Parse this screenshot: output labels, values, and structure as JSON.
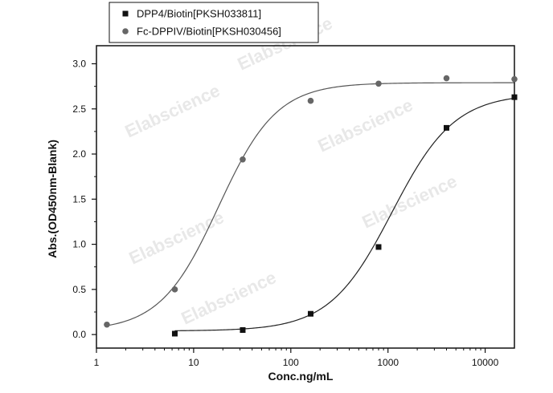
{
  "chart_data": {
    "type": "scatter",
    "xscale": "log",
    "xlim": [
      1,
      20000
    ],
    "ylim": [
      -0.15,
      3.2
    ],
    "xticks": [
      1,
      10,
      100,
      1000,
      10000
    ],
    "xtick_labels": [
      "1",
      "10",
      "100",
      "1000",
      "10000"
    ],
    "yticks": [
      0.0,
      0.5,
      1.0,
      1.5,
      2.0,
      2.5,
      3.0
    ],
    "ytick_labels": [
      "0.0",
      "0.5",
      "1.0",
      "1.5",
      "2.0",
      "2.5",
      "3.0"
    ],
    "xlabel": "Conc.ng/mL",
    "ylabel": "Abs.(OD450nm-Blank)",
    "legend_position": "top-left",
    "grid": false,
    "series": [
      {
        "name": "DPP4/Biotin[PKSH033811]",
        "marker": "square",
        "color": "#111111",
        "x": [
          6.4,
          32,
          160,
          800,
          4000,
          20000
        ],
        "y": [
          0.01,
          0.05,
          0.23,
          0.97,
          2.29,
          2.63
        ],
        "fit": {
          "bottom": 0.04,
          "top": 2.67,
          "ec50": 1100,
          "hill": 1.35
        }
      },
      {
        "name": "Fc-DPPIV/Biotin[PKSH030456]",
        "marker": "circle",
        "color": "#666666",
        "x": [
          1.28,
          6.4,
          32,
          160,
          800,
          4000,
          20000
        ],
        "y": [
          0.11,
          0.5,
          1.94,
          2.59,
          2.78,
          2.84,
          2.83
        ],
        "fit": {
          "bottom": 0.04,
          "top": 2.79,
          "ec50": 18,
          "hill": 1.45
        }
      }
    ]
  },
  "watermarks": [
    "Elabscience",
    "Elabscience",
    "Elabscience",
    "Elabscience",
    "Elabscience",
    "Elabscience"
  ]
}
